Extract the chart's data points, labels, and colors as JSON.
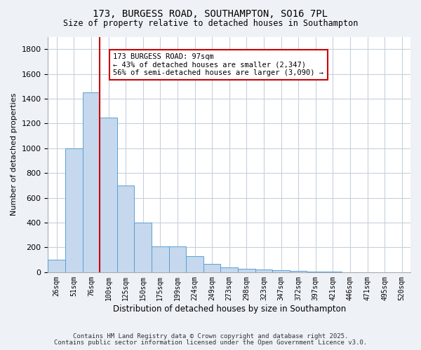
{
  "title1": "173, BURGESS ROAD, SOUTHAMPTON, SO16 7PL",
  "title2": "Size of property relative to detached houses in Southampton",
  "xlabel": "Distribution of detached houses by size in Southampton",
  "ylabel": "Number of detached properties",
  "categories": [
    "26sqm",
    "51sqm",
    "76sqm",
    "100sqm",
    "125sqm",
    "150sqm",
    "175sqm",
    "199sqm",
    "224sqm",
    "249sqm",
    "273sqm",
    "298sqm",
    "323sqm",
    "347sqm",
    "372sqm",
    "397sqm",
    "421sqm",
    "446sqm",
    "471sqm",
    "495sqm",
    "520sqm"
  ],
  "bar_values": [
    100,
    1000,
    1450,
    1250,
    700,
    400,
    210,
    210,
    130,
    65,
    40,
    25,
    20,
    15,
    10,
    5,
    5,
    0,
    0,
    0,
    0
  ],
  "bar_color": "#c5d8ed",
  "bar_edge_color": "#5a9fd4",
  "red_line_x": 3.0,
  "ylim": [
    0,
    1900
  ],
  "yticks": [
    0,
    200,
    400,
    600,
    800,
    1000,
    1200,
    1400,
    1600,
    1800
  ],
  "annotation_text": "173 BURGESS ROAD: 97sqm\n← 43% of detached houses are smaller (2,347)\n56% of semi-detached houses are larger (3,090) →",
  "annotation_box_color": "#ffffff",
  "annotation_box_edge_color": "#cc0000",
  "footnote1": "Contains HM Land Registry data © Crown copyright and database right 2025.",
  "footnote2": "Contains public sector information licensed under the Open Government Licence v3.0.",
  "bg_color": "#eef2f7",
  "plot_bg_color": "#ffffff",
  "grid_color": "#c8d0dc"
}
